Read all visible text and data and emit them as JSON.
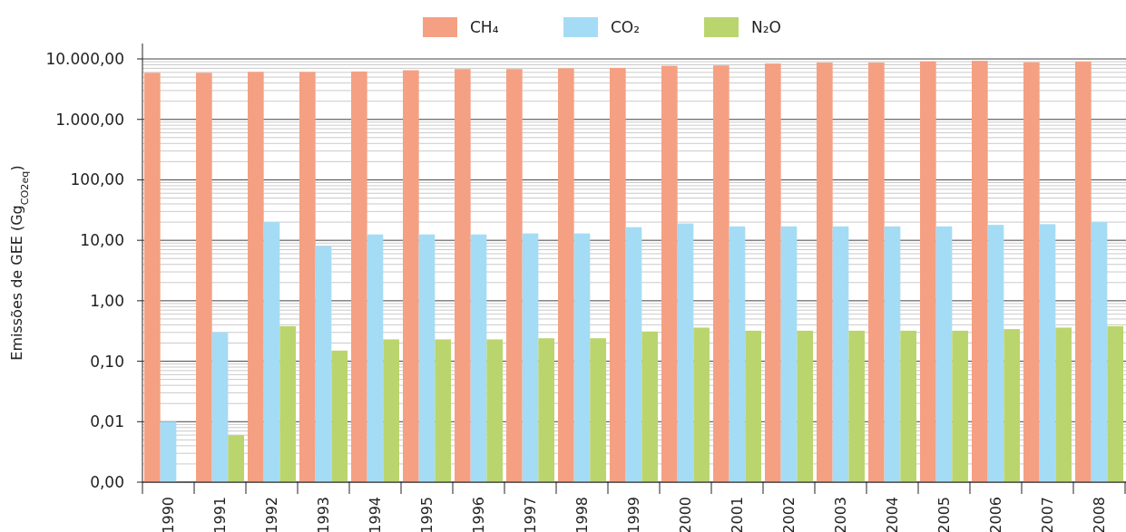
{
  "chart_data": {
    "type": "bar",
    "ylabel": "Emissões de GEE (Gg$_{CO2eq}$)",
    "categories": [
      "1990",
      "1991",
      "1992",
      "1993",
      "1994",
      "1995",
      "1996",
      "1997",
      "1998",
      "1999",
      "2000",
      "2001",
      "2002",
      "2003",
      "2004",
      "2005",
      "2006",
      "2007",
      "2008"
    ],
    "series": [
      {
        "name": "CH₄",
        "color": "#f5a083",
        "values": [
          5900,
          5900,
          6100,
          6100,
          6200,
          6500,
          6800,
          6800,
          7000,
          7100,
          7700,
          7800,
          8400,
          8700,
          8700,
          9100,
          9300,
          8800,
          9000
        ]
      },
      {
        "name": "CO₂",
        "color": "#a5dcf5",
        "values": [
          0.01,
          0.3,
          20,
          8,
          12.5,
          12.5,
          12.5,
          13,
          13,
          16.5,
          19,
          17,
          17,
          17,
          17,
          17,
          18,
          18.5,
          20
        ]
      },
      {
        "name": "N₂O",
        "color": "#bad56e",
        "values": [
          null,
          0.006,
          0.38,
          0.15,
          0.23,
          0.23,
          0.23,
          0.24,
          0.24,
          0.31,
          0.36,
          0.32,
          0.32,
          0.32,
          0.32,
          0.32,
          0.34,
          0.36,
          0.38
        ]
      }
    ],
    "log": true,
    "ylim": [
      0.001,
      18000
    ],
    "yticks": [
      {
        "value": 0.001,
        "label": "0,00"
      },
      {
        "value": 0.002,
        "label": null
      },
      {
        "value": 0.003,
        "label": null
      },
      {
        "value": 0.004,
        "label": null
      },
      {
        "value": 0.005,
        "label": null
      },
      {
        "value": 0.006,
        "label": null
      },
      {
        "value": 0.007,
        "label": null
      },
      {
        "value": 0.008,
        "label": null
      },
      {
        "value": 0.009,
        "label": null
      },
      {
        "value": 0.01,
        "label": "0,01"
      },
      {
        "value": 0.02,
        "label": null
      },
      {
        "value": 0.03,
        "label": null
      },
      {
        "value": 0.04,
        "label": null
      },
      {
        "value": 0.05,
        "label": null
      },
      {
        "value": 0.06,
        "label": null
      },
      {
        "value": 0.07,
        "label": null
      },
      {
        "value": 0.08,
        "label": null
      },
      {
        "value": 0.09,
        "label": null
      },
      {
        "value": 0.1,
        "label": "0,10"
      },
      {
        "value": 0.2,
        "label": null
      },
      {
        "value": 0.3,
        "label": null
      },
      {
        "value": 0.4,
        "label": null
      },
      {
        "value": 0.5,
        "label": null
      },
      {
        "value": 0.6,
        "label": null
      },
      {
        "value": 0.7,
        "label": null
      },
      {
        "value": 0.8,
        "label": null
      },
      {
        "value": 0.9,
        "label": null
      },
      {
        "value": 1,
        "label": "1,00"
      },
      {
        "value": 2,
        "label": null
      },
      {
        "value": 3,
        "label": null
      },
      {
        "value": 4,
        "label": null
      },
      {
        "value": 5,
        "label": null
      },
      {
        "value": 6,
        "label": null
      },
      {
        "value": 7,
        "label": null
      },
      {
        "value": 8,
        "label": null
      },
      {
        "value": 9,
        "label": null
      },
      {
        "value": 10,
        "label": "10,00"
      },
      {
        "value": 20,
        "label": null
      },
      {
        "value": 30,
        "label": null
      },
      {
        "value": 40,
        "label": null
      },
      {
        "value": 50,
        "label": null
      },
      {
        "value": 60,
        "label": null
      },
      {
        "value": 70,
        "label": null
      },
      {
        "value": 80,
        "label": null
      },
      {
        "value": 90,
        "label": null
      },
      {
        "value": 100,
        "label": "100,00"
      },
      {
        "value": 200,
        "label": null
      },
      {
        "value": 300,
        "label": null
      },
      {
        "value": 400,
        "label": null
      },
      {
        "value": 500,
        "label": null
      },
      {
        "value": 600,
        "label": null
      },
      {
        "value": 700,
        "label": null
      },
      {
        "value": 800,
        "label": null
      },
      {
        "value": 900,
        "label": null
      },
      {
        "value": 1000,
        "label": "1.000,00"
      },
      {
        "value": 2000,
        "label": null
      },
      {
        "value": 3000,
        "label": null
      },
      {
        "value": 4000,
        "label": null
      },
      {
        "value": 5000,
        "label": null
      },
      {
        "value": 6000,
        "label": null
      },
      {
        "value": 7000,
        "label": null
      },
      {
        "value": 8000,
        "label": null
      },
      {
        "value": 9000,
        "label": null
      },
      {
        "value": 10000,
        "label": "10.000,00"
      }
    ],
    "grid": true,
    "legend": "top"
  }
}
